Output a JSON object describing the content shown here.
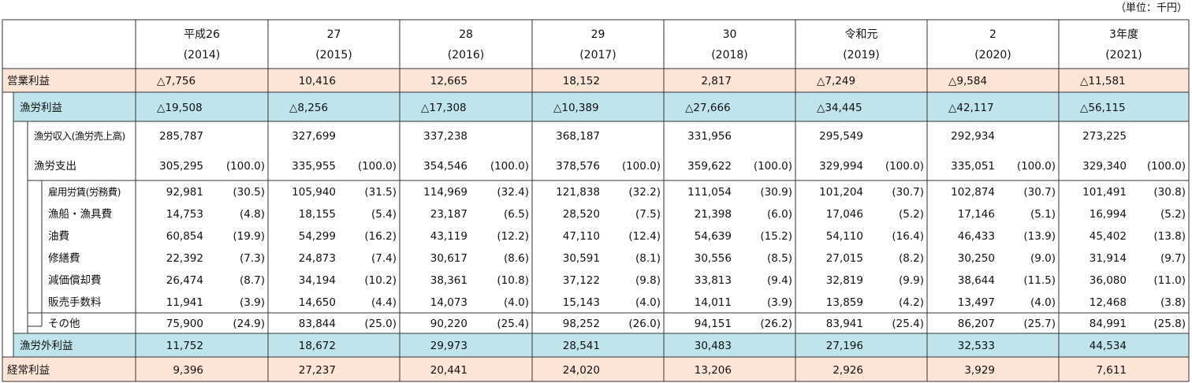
{
  "unit_note": "（単位：千円）",
  "colors": {
    "orange_band": "#fce4d6",
    "blue_band": "#bfe4ec",
    "line": "#333333"
  },
  "header": {
    "years": [
      {
        "era": "平成26",
        "year": "(2014)"
      },
      {
        "era": "27",
        "year": "(2015)"
      },
      {
        "era": "28",
        "year": "(2016)"
      },
      {
        "era": "29",
        "year": "(2017)"
      },
      {
        "era": "30",
        "year": "(2018)"
      },
      {
        "era": "令和元",
        "year": "(2019)"
      },
      {
        "era": "2",
        "year": "(2020)"
      },
      {
        "era": "3年度",
        "year": "(2021)"
      }
    ]
  },
  "rows": [
    {
      "label": "営業利益",
      "level": 0,
      "band": "orange",
      "values": [
        "△7,756",
        "10,416",
        "12,665",
        "18,152",
        "2,817",
        "△7,249",
        "△9,584",
        "△11,581"
      ]
    },
    {
      "label": "漁労利益",
      "level": 1,
      "band": "blue",
      "values": [
        "△19,508",
        "△8,256",
        "△17,308",
        "△10,389",
        "△27,666",
        "△34,445",
        "△42,117",
        "△56,115"
      ]
    },
    {
      "label": "漁労収入(漁労売上高)",
      "level": 2,
      "band": "none",
      "small": true,
      "values": [
        "285,787",
        "327,699",
        "337,238",
        "368,187",
        "331,956",
        "295,549",
        "292,934",
        "273,225"
      ]
    },
    {
      "label": "漁労支出",
      "level": 2,
      "band": "none",
      "values": [
        "305,295",
        "335,955",
        "354,546",
        "378,576",
        "359,622",
        "329,994",
        "335,051",
        "329,340"
      ],
      "pcts": [
        "(100.0)",
        "(100.0)",
        "(100.0)",
        "(100.0)",
        "(100.0)",
        "(100.0)",
        "(100.0)",
        "(100.0)"
      ]
    },
    {
      "label": "雇用労賃(労務費)",
      "level": 3,
      "band": "none",
      "small": true,
      "values": [
        "92,981",
        "105,940",
        "114,969",
        "121,838",
        "111,054",
        "101,204",
        "102,874",
        "101,491"
      ],
      "pcts": [
        "(30.5)",
        "(31.5)",
        "(32.4)",
        "(32.2)",
        "(30.9)",
        "(30.7)",
        "(30.7)",
        "(30.8)"
      ]
    },
    {
      "label": "漁船・漁具費",
      "level": 3,
      "band": "none",
      "values": [
        "14,753",
        "18,155",
        "23,187",
        "28,520",
        "21,398",
        "17,046",
        "17,146",
        "16,994"
      ],
      "pcts": [
        "(4.8)",
        "(5.4)",
        "(6.5)",
        "(7.5)",
        "(6.0)",
        "(5.2)",
        "(5.1)",
        "(5.2)"
      ]
    },
    {
      "label": "油費",
      "level": 3,
      "band": "none",
      "values": [
        "60,854",
        "54,299",
        "43,119",
        "47,110",
        "54,639",
        "54,110",
        "46,433",
        "45,402"
      ],
      "pcts": [
        "(19.9)",
        "(16.2)",
        "(12.2)",
        "(12.4)",
        "(15.2)",
        "(16.4)",
        "(13.9)",
        "(13.8)"
      ]
    },
    {
      "label": "修繕費",
      "level": 3,
      "band": "none",
      "values": [
        "22,392",
        "24,873",
        "30,617",
        "30,591",
        "30,556",
        "27,015",
        "30,250",
        "31,914"
      ],
      "pcts": [
        "(7.3)",
        "(7.4)",
        "(8.6)",
        "(8.1)",
        "(8.5)",
        "(8.2)",
        "(9.0)",
        "(9.7)"
      ]
    },
    {
      "label": "減価償却費",
      "level": 3,
      "band": "none",
      "values": [
        "26,474",
        "34,194",
        "38,361",
        "37,122",
        "33,813",
        "32,819",
        "38,644",
        "36,080"
      ],
      "pcts": [
        "(8.7)",
        "(10.2)",
        "(10.8)",
        "(9.8)",
        "(9.4)",
        "(9.9)",
        "(11.5)",
        "(11.0)"
      ]
    },
    {
      "label": "販売手数料",
      "level": 3,
      "band": "none",
      "values": [
        "11,941",
        "14,650",
        "14,073",
        "15,143",
        "14,011",
        "13,859",
        "13,497",
        "12,468"
      ],
      "pcts": [
        "(3.9)",
        "(4.4)",
        "(4.0)",
        "(4.0)",
        "(3.9)",
        "(4.2)",
        "(4.0)",
        "(3.8)"
      ]
    },
    {
      "label": "その他",
      "level": 3,
      "band": "none",
      "values": [
        "75,900",
        "83,844",
        "90,220",
        "98,252",
        "94,151",
        "83,941",
        "86,207",
        "84,991"
      ],
      "pcts": [
        "(24.9)",
        "(25.0)",
        "(25.4)",
        "(26.0)",
        "(26.2)",
        "(25.4)",
        "(25.7)",
        "(25.8)"
      ]
    },
    {
      "label": "漁労外利益",
      "level": 1,
      "band": "blue",
      "values": [
        "11,752",
        "18,672",
        "29,973",
        "28,541",
        "30,483",
        "27,196",
        "32,533",
        "44,534"
      ]
    },
    {
      "label": "経常利益",
      "level": 0,
      "band": "orange",
      "values": [
        "9,396",
        "27,237",
        "20,441",
        "24,020",
        "13,206",
        "2,926",
        "3,929",
        "7,611"
      ]
    }
  ]
}
